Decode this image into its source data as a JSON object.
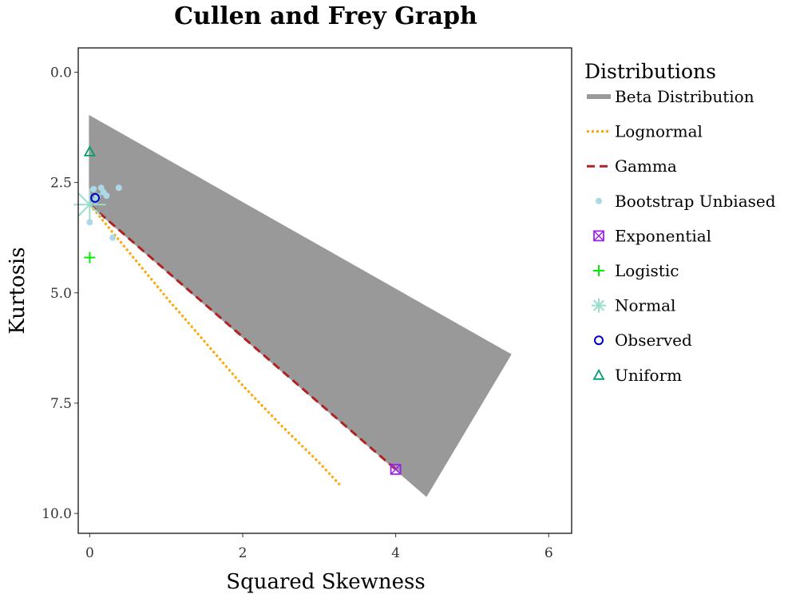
{
  "chart_data": {
    "type": "scatter",
    "title": "Cullen and Frey Graph",
    "xlabel": "Squared Skewness",
    "ylabel": "Kurtosis",
    "xlim": [
      -0.15,
      6.3
    ],
    "ylim": [
      10.45,
      -0.55
    ],
    "y_reversed": true,
    "xticks": [
      "0",
      "2",
      "4",
      "6"
    ],
    "xtick_values": [
      0,
      2,
      4,
      6
    ],
    "yticks": [
      "0.0",
      "2.5",
      "5.0",
      "7.5",
      "10.0"
    ],
    "ytick_values": [
      0,
      2.5,
      5,
      7.5,
      10
    ],
    "grid": false,
    "legend_position": "right",
    "legend_title": "Distributions",
    "beta_region": [
      [
        0,
        1
      ],
      [
        5.5,
        6.4
      ],
      [
        4.4,
        9.6
      ],
      [
        0,
        3
      ]
    ],
    "series": [
      {
        "name": "Beta Distribution",
        "kind": "area",
        "color": "#999999",
        "x": [
          0,
          5.5,
          4.4,
          0
        ],
        "y": [
          1,
          6.4,
          9.6,
          3
        ]
      },
      {
        "name": "Lognormal",
        "kind": "line",
        "style": "dotted",
        "color": "#FFA500",
        "x": [
          0,
          0.5,
          1,
          1.5,
          2,
          2.5,
          3,
          3.27
        ],
        "y": [
          3,
          4.05,
          5.1,
          6.1,
          7.1,
          8.0,
          8.85,
          9.35
        ]
      },
      {
        "name": "Gamma",
        "kind": "line",
        "style": "dashed",
        "color": "#B22222",
        "x": [
          0,
          4
        ],
        "y": [
          3,
          9
        ]
      },
      {
        "name": "Bootstrap Unbiased",
        "kind": "points",
        "color": "#ADD8E6",
        "x": [
          0.05,
          0.15,
          0.38,
          0.22,
          0.1,
          0.0,
          0.3,
          0.08,
          0.18
        ],
        "y": [
          2.65,
          2.62,
          2.62,
          2.8,
          2.82,
          3.4,
          3.75,
          2.9,
          2.72
        ]
      },
      {
        "name": "Exponential",
        "kind": "point",
        "marker": "square-x",
        "color": "#A020F0",
        "x": [
          4
        ],
        "y": [
          9
        ]
      },
      {
        "name": "Logistic",
        "kind": "point",
        "marker": "plus",
        "color": "#00EE00",
        "x": [
          0
        ],
        "y": [
          4.2
        ]
      },
      {
        "name": "Normal",
        "kind": "point",
        "marker": "asterisk",
        "color": "#99DDCC",
        "x": [
          0
        ],
        "y": [
          3
        ]
      },
      {
        "name": "Observed",
        "kind": "point",
        "marker": "circle",
        "color": "#0000CD",
        "x": [
          0.07
        ],
        "y": [
          2.85
        ]
      },
      {
        "name": "Uniform",
        "kind": "point",
        "marker": "triangle",
        "color": "#009E73",
        "x": [
          0
        ],
        "y": [
          1.8
        ]
      }
    ]
  }
}
